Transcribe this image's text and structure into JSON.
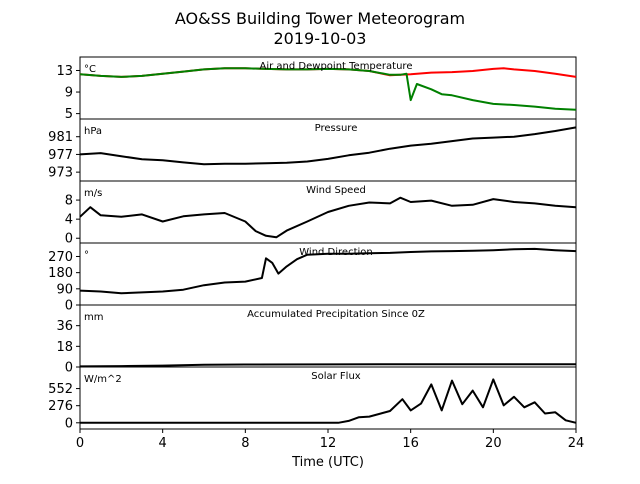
{
  "figure": {
    "title": "AO&SS Building Tower Meteorogram",
    "subtitle": "2019-10-03",
    "xlabel": "Time (UTC)"
  },
  "chart_data": {
    "type": "line",
    "x_ticks": [
      0,
      4,
      8,
      12,
      16,
      20,
      24
    ],
    "x_tick_labels": [
      "0",
      "4",
      "8",
      "12",
      "16",
      "20",
      "24"
    ],
    "xlim": [
      0,
      24
    ],
    "grid": false,
    "panels": [
      {
        "key": "temp",
        "title": "Air and Dewpoint Temperature",
        "unit": "°C",
        "ylim": [
          4,
          15.5
        ],
        "yticks": [
          5,
          9,
          13
        ],
        "series": [
          {
            "color": "#ff0000",
            "points": [
              [
                0,
                12.3
              ],
              [
                1,
                12.0
              ],
              [
                2,
                11.8
              ],
              [
                3,
                12.0
              ],
              [
                4,
                12.4
              ],
              [
                5,
                12.8
              ],
              [
                6,
                13.2
              ],
              [
                7,
                13.4
              ],
              [
                8,
                13.4
              ],
              [
                9,
                13.3
              ],
              [
                10,
                13.2
              ],
              [
                11,
                13.2
              ],
              [
                12,
                13.3
              ],
              [
                13,
                13.2
              ],
              [
                14,
                12.9
              ],
              [
                15,
                12.1
              ],
              [
                15.5,
                12.2
              ],
              [
                16,
                12.3
              ],
              [
                17,
                12.6
              ],
              [
                18,
                12.7
              ],
              [
                19,
                12.9
              ],
              [
                20,
                13.3
              ],
              [
                20.5,
                13.4
              ],
              [
                21,
                13.2
              ],
              [
                22,
                12.9
              ],
              [
                23,
                12.4
              ],
              [
                24,
                11.8
              ]
            ]
          },
          {
            "color": "#008000",
            "points": [
              [
                0,
                12.3
              ],
              [
                1,
                12.0
              ],
              [
                2,
                11.8
              ],
              [
                3,
                12.0
              ],
              [
                4,
                12.4
              ],
              [
                5,
                12.8
              ],
              [
                6,
                13.2
              ],
              [
                7,
                13.4
              ],
              [
                8,
                13.4
              ],
              [
                9,
                13.3
              ],
              [
                10,
                13.2
              ],
              [
                11,
                13.2
              ],
              [
                12,
                13.3
              ],
              [
                13,
                13.2
              ],
              [
                14,
                12.9
              ],
              [
                15,
                12.2
              ],
              [
                15.5,
                12.2
              ],
              [
                15.8,
                12.4
              ],
              [
                16.0,
                7.5
              ],
              [
                16.3,
                10.5
              ],
              [
                17,
                9.5
              ],
              [
                17.5,
                8.6
              ],
              [
                18,
                8.4
              ],
              [
                19,
                7.5
              ],
              [
                20,
                6.8
              ],
              [
                21,
                6.6
              ],
              [
                22,
                6.3
              ],
              [
                23,
                5.9
              ],
              [
                24,
                5.7
              ]
            ]
          }
        ]
      },
      {
        "key": "pressure",
        "title": "Pressure",
        "unit": "hPa",
        "ylim": [
          971,
          985
        ],
        "yticks": [
          973,
          977,
          981
        ],
        "series": [
          {
            "color": "#000000",
            "points": [
              [
                0,
                977.0
              ],
              [
                1,
                977.3
              ],
              [
                2,
                976.6
              ],
              [
                3,
                975.9
              ],
              [
                4,
                975.7
              ],
              [
                5,
                975.2
              ],
              [
                6,
                974.8
              ],
              [
                7,
                974.9
              ],
              [
                8,
                974.9
              ],
              [
                9,
                975.0
              ],
              [
                10,
                975.1
              ],
              [
                11,
                975.4
              ],
              [
                12,
                976.0
              ],
              [
                13,
                976.8
              ],
              [
                14,
                977.4
              ],
              [
                15,
                978.3
              ],
              [
                16,
                979.0
              ],
              [
                17,
                979.4
              ],
              [
                18,
                980.0
              ],
              [
                19,
                980.6
              ],
              [
                20,
                980.8
              ],
              [
                21,
                981.0
              ],
              [
                22,
                981.6
              ],
              [
                23,
                982.3
              ],
              [
                24,
                983.1
              ]
            ]
          }
        ]
      },
      {
        "key": "wind_speed",
        "title": "Wind Speed",
        "unit": "m/s",
        "ylim": [
          -1,
          12
        ],
        "yticks": [
          0,
          4,
          8
        ],
        "series": [
          {
            "color": "#000000",
            "points": [
              [
                0,
                4.5
              ],
              [
                0.5,
                6.5
              ],
              [
                1,
                4.8
              ],
              [
                2,
                4.5
              ],
              [
                3,
                5.0
              ],
              [
                4,
                3.5
              ],
              [
                5,
                4.6
              ],
              [
                6,
                5.0
              ],
              [
                7,
                5.3
              ],
              [
                8,
                3.5
              ],
              [
                8.5,
                1.5
              ],
              [
                9,
                0.5
              ],
              [
                9.5,
                0.2
              ],
              [
                10,
                1.6
              ],
              [
                11,
                3.5
              ],
              [
                12,
                5.5
              ],
              [
                13,
                6.8
              ],
              [
                14,
                7.5
              ],
              [
                15,
                7.3
              ],
              [
                15.5,
                8.5
              ],
              [
                16,
                7.6
              ],
              [
                17,
                7.9
              ],
              [
                18,
                6.8
              ],
              [
                19,
                7.0
              ],
              [
                20,
                8.2
              ],
              [
                21,
                7.6
              ],
              [
                22,
                7.3
              ],
              [
                23,
                6.8
              ],
              [
                24,
                6.5
              ]
            ]
          }
        ]
      },
      {
        "key": "wind_direction",
        "title": "Wind Direction",
        "unit": "°",
        "ylim": [
          0,
          345
        ],
        "yticks": [
          0,
          90,
          180,
          270
        ],
        "series": [
          {
            "color": "#000000",
            "points": [
              [
                0,
                80
              ],
              [
                1,
                75
              ],
              [
                2,
                65
              ],
              [
                3,
                70
              ],
              [
                4,
                75
              ],
              [
                5,
                85
              ],
              [
                6,
                110
              ],
              [
                7,
                125
              ],
              [
                8,
                130
              ],
              [
                8.8,
                150
              ],
              [
                9.0,
                260
              ],
              [
                9.3,
                235
              ],
              [
                9.6,
                175
              ],
              [
                10,
                215
              ],
              [
                10.5,
                255
              ],
              [
                11,
                280
              ],
              [
                12,
                285
              ],
              [
                13,
                285
              ],
              [
                14,
                288
              ],
              [
                15,
                290
              ],
              [
                16,
                295
              ],
              [
                17,
                298
              ],
              [
                18,
                300
              ],
              [
                19,
                302
              ],
              [
                20,
                305
              ],
              [
                21,
                310
              ],
              [
                22,
                312
              ],
              [
                23,
                305
              ],
              [
                24,
                300
              ]
            ]
          }
        ]
      },
      {
        "key": "precip",
        "title": "Accumulated Precipitation Since 0Z",
        "unit": "mm",
        "ylim": [
          0,
          54
        ],
        "yticks": [
          0,
          18,
          36
        ],
        "series": [
          {
            "color": "#000000",
            "points": [
              [
                0,
                0.5
              ],
              [
                2,
                0.8
              ],
              [
                4,
                1.2
              ],
              [
                6,
                2.0
              ],
              [
                8,
                2.2
              ],
              [
                12,
                2.3
              ],
              [
                16,
                2.4
              ],
              [
                20,
                2.4
              ],
              [
                24,
                2.4
              ]
            ]
          }
        ]
      },
      {
        "key": "solar",
        "title": "Solar Flux",
        "unit": "W/m^2",
        "ylim": [
          -100,
          900
        ],
        "yticks": [
          0,
          276,
          552
        ],
        "series": [
          {
            "color": "#000000",
            "points": [
              [
                0,
                0
              ],
              [
                12.5,
                0
              ],
              [
                13,
                30
              ],
              [
                13.5,
                90
              ],
              [
                14,
                100
              ],
              [
                15,
                190
              ],
              [
                15.6,
                380
              ],
              [
                16,
                200
              ],
              [
                16.5,
                310
              ],
              [
                17,
                620
              ],
              [
                17.5,
                200
              ],
              [
                18,
                680
              ],
              [
                18.5,
                300
              ],
              [
                19,
                520
              ],
              [
                19.5,
                250
              ],
              [
                20,
                700
              ],
              [
                20.5,
                280
              ],
              [
                21,
                420
              ],
              [
                21.5,
                250
              ],
              [
                22,
                330
              ],
              [
                22.5,
                150
              ],
              [
                23,
                170
              ],
              [
                23.5,
                40
              ],
              [
                24,
                0
              ]
            ]
          }
        ]
      }
    ]
  }
}
